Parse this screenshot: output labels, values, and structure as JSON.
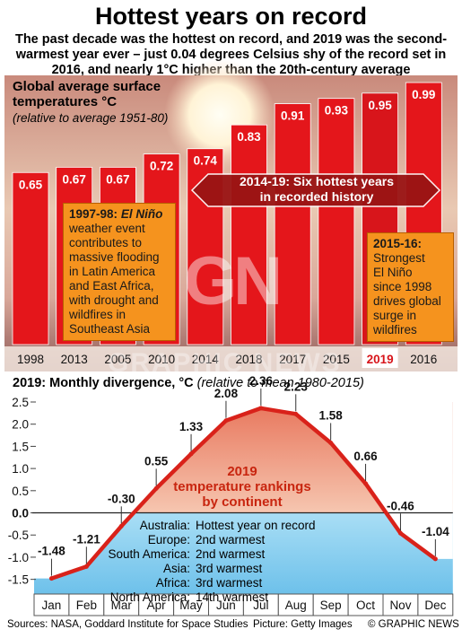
{
  "header": {
    "title": "Hottest years on record",
    "subtitle": "The past decade was the hottest on record, and 2019 was the second-warmest year ever – just 0.04 degrees Celsius shy of the record set in 2016, and nearly 1°C higher than the 20th-century average"
  },
  "panel1": {
    "title_line1": "Global average surface",
    "title_line2": "temperatures °C",
    "note": "(relative to average 1951-80)",
    "banner_line1": "2014-19: Six hottest years",
    "banner_line2": "in recorded history",
    "callout_left": {
      "head_year": "1997-98:",
      "head_event": "El Niño",
      "lines": [
        "weather event",
        "contributes to",
        "massive flooding",
        "in Latin America",
        "and East Africa,",
        "with drought and",
        "wildfires in",
        "Southeast Asia"
      ]
    },
    "callout_right": {
      "head": "2015-16:",
      "lines": [
        "Strongest",
        "El Niño",
        "since 1998",
        "drives global",
        "surge in",
        "wildfires"
      ]
    },
    "watermark": "GN",
    "watermark2": "GRAPHIC NEWS"
  },
  "panel2": {
    "title_bold": "2019: Monthly divergence, °C",
    "title_italic": "(relative to mean 1980-2015)",
    "rank_title_line1": "2019",
    "rank_title_line2": "temperature rankings",
    "rank_title_line3": "by continent",
    "rankings": [
      {
        "continent": "Australia:",
        "rank": "Hottest year on record"
      },
      {
        "continent": "Europe:",
        "rank": "2nd warmest"
      },
      {
        "continent": "South America:",
        "rank": "2nd warmest"
      },
      {
        "continent": "Asia:",
        "rank": "3rd warmest"
      },
      {
        "continent": "Africa:",
        "rank": "3rd warmest"
      },
      {
        "continent": "North America:",
        "rank": "14th warmest"
      }
    ]
  },
  "footer": {
    "sources": "Sources: NASA, Goddard Institute for Space Studies",
    "picture": "Picture: Getty Images",
    "credit": "© GRAPHIC NEWS"
  },
  "colors": {
    "bar": "#e4161b",
    "line": "#d9221a",
    "highlight": "#d8151b",
    "callout": "#f5931e"
  },
  "chart_data": [
    {
      "type": "bar",
      "title": "Global average surface temperatures °C",
      "subtitle": "(relative to average 1951-80)",
      "categories": [
        "1998",
        "2013",
        "2005",
        "2010",
        "2014",
        "2018",
        "2017",
        "2015",
        "2019",
        "2016"
      ],
      "values": [
        0.65,
        0.67,
        0.67,
        0.72,
        0.74,
        0.83,
        0.91,
        0.93,
        0.95,
        0.99
      ],
      "value_labels": [
        "0.65",
        "0.67",
        "0.67",
        "0.72",
        "0.74",
        "0.83",
        "0.91",
        "0.93",
        "0.95",
        "0.99"
      ],
      "highlight_category": "2019",
      "ylim": [
        0,
        0.99
      ]
    },
    {
      "type": "line",
      "title": "2019: Monthly divergence, °C",
      "subtitle": "(relative to mean 1980-2015)",
      "categories": [
        "Jan",
        "Feb",
        "Mar",
        "Apr",
        "May",
        "Jun",
        "Jul",
        "Aug",
        "Sep",
        "Oct",
        "Nov",
        "Dec"
      ],
      "series": [
        {
          "values": [
            -1.48,
            -1.21,
            -0.3,
            0.55,
            1.33,
            2.08,
            2.36,
            2.23,
            1.58,
            0.66,
            -0.46,
            -1.04
          ]
        }
      ],
      "value_labels": [
        "-1.48",
        "-1.21",
        "-0.30",
        "0.55",
        "1.33",
        "2.08",
        "2.36",
        "2.23",
        "1.58",
        "0.66",
        "-0.46",
        "-1.04"
      ],
      "yticks": [
        "2.5",
        "2.0",
        "1.5",
        "1.0",
        "0.5",
        "0.0",
        "-0.5",
        "-1.0",
        "-1.5"
      ],
      "ylim": [
        -1.75,
        2.5
      ],
      "grid": false
    }
  ]
}
